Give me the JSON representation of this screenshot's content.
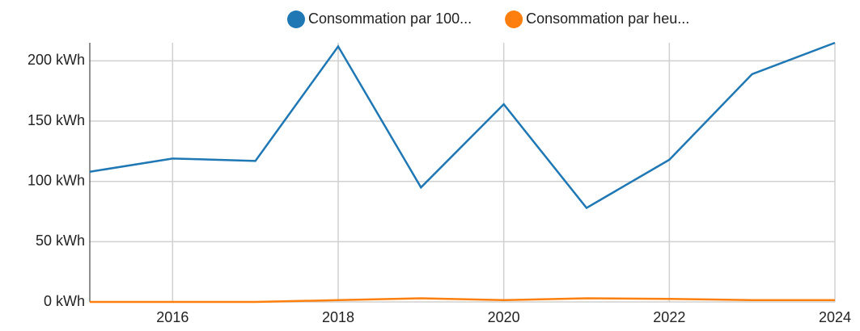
{
  "chart_data": {
    "type": "line",
    "x": [
      2015,
      2016,
      2017,
      2018,
      2019,
      2020,
      2021,
      2022,
      2023,
      2024
    ],
    "series": [
      {
        "name": "Consommation par 100...",
        "color": "#1f77b4",
        "values": [
          108,
          119,
          117,
          212,
          95,
          164,
          78,
          118,
          189,
          215
        ]
      },
      {
        "name": "Consommation par heu...",
        "color": "#ff7f0e",
        "values": [
          0,
          0,
          0,
          1.5,
          3,
          1.5,
          3,
          2.5,
          1.5,
          1.5
        ]
      }
    ],
    "xlim": [
      2015,
      2024
    ],
    "xticks": [
      2016,
      2018,
      2020,
      2022,
      2024
    ],
    "ylim": [
      0,
      215
    ],
    "yticks": [
      {
        "value": 0,
        "label": "0 kWh"
      },
      {
        "value": 50,
        "label": "50 kWh"
      },
      {
        "value": 100,
        "label": "100 kWh"
      },
      {
        "value": 150,
        "label": "150 kWh"
      },
      {
        "value": 200,
        "label": "200 kWh"
      }
    ],
    "grid": true
  }
}
